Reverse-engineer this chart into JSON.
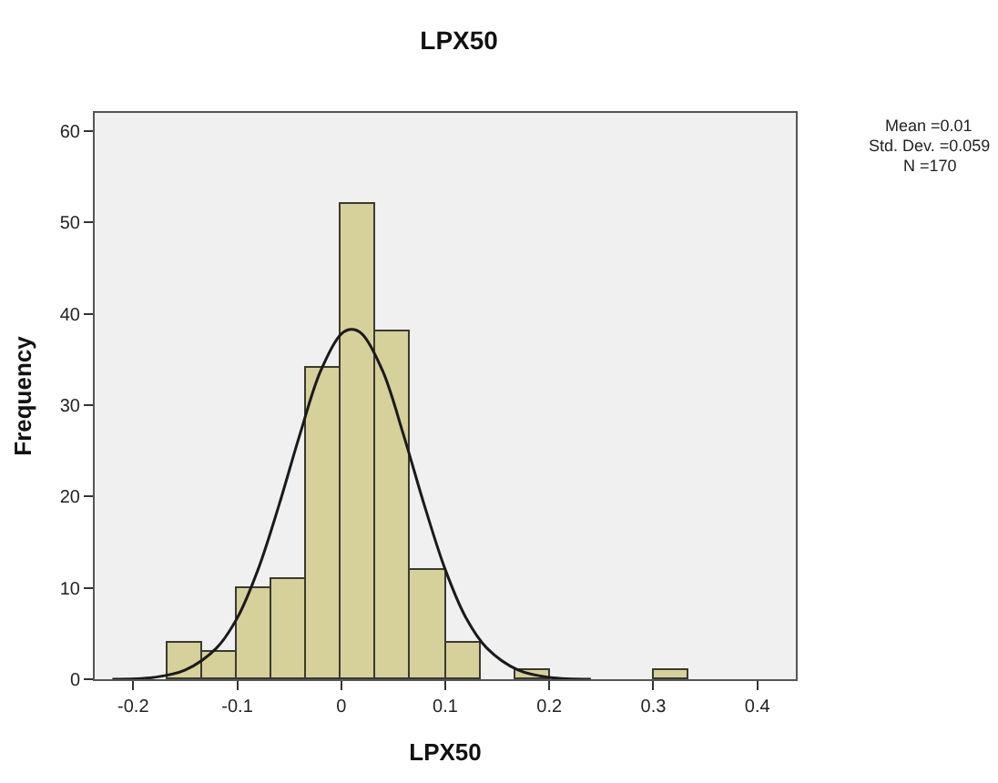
{
  "chart_data": {
    "type": "histogram",
    "title": "LPX50",
    "xlabel": "LPX50",
    "ylabel": "Frequency",
    "bins": [
      -0.1667,
      -0.1333,
      -0.1,
      -0.0667,
      -0.0333,
      0,
      0.0333,
      0.0667,
      0.1,
      0.1333,
      0.1667,
      0.2,
      0.2333,
      0.2667,
      0.3,
      0.3333
    ],
    "values": [
      4,
      3,
      10,
      11,
      34,
      52,
      38,
      12,
      4,
      0,
      1,
      0,
      0,
      0,
      1
    ],
    "color": "#d6d09a",
    "series": [
      {
        "type": "line",
        "color": "#1a1a1a",
        "x": [
          -0.22,
          -0.18,
          -0.15,
          -0.12,
          -0.1,
          -0.08,
          -0.06,
          -0.04,
          -0.02,
          0,
          0.01,
          0.02,
          0.04,
          0.06,
          0.08,
          0.1,
          0.12,
          0.14,
          0.17,
          0.2,
          0.24
        ],
        "values": [
          0,
          0.2,
          1,
          3.4,
          6.7,
          12,
          19,
          26.7,
          33.7,
          37.8,
          38.3,
          37.8,
          33.7,
          26.7,
          19,
          12,
          6.7,
          3.4,
          1,
          0.2,
          0
        ]
      }
    ],
    "xlim": [
      -0.237,
      0.437
    ],
    "xticks": [
      -0.2,
      -0.1,
      0,
      0.1,
      0.2,
      0.3,
      0.4
    ],
    "ylim": [
      0,
      62
    ],
    "yticks": [
      0,
      10,
      20,
      30,
      40,
      50,
      60
    ],
    "grid": false,
    "annotations": [
      "Mean =0.01",
      "Std. Dev. =0.059",
      "N =170"
    ]
  }
}
